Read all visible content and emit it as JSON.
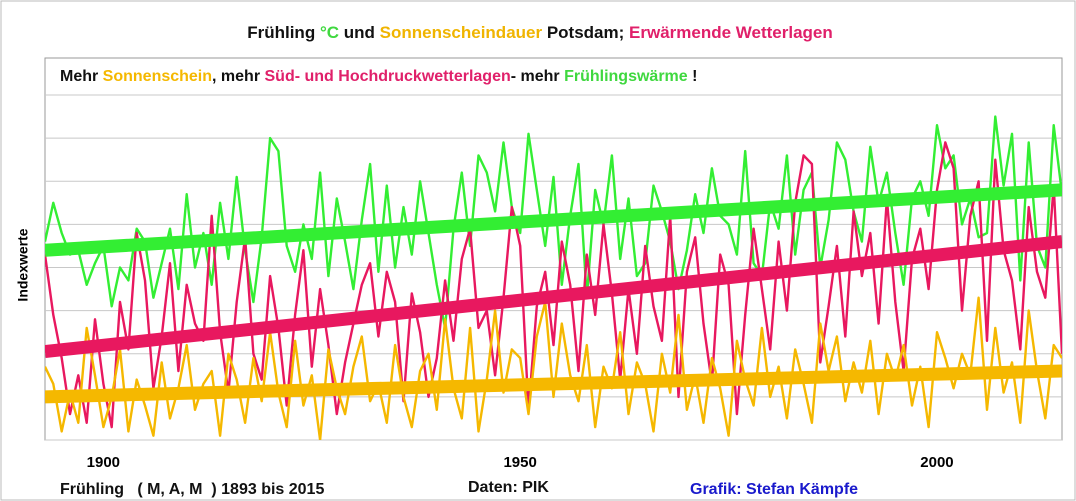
{
  "chart_data": {
    "type": "line",
    "title": [
      {
        "text": "Frühling ",
        "color": "#111111"
      },
      {
        "text": "°C",
        "color": "#3fd83f"
      },
      {
        "text": " und ",
        "color": "#111111"
      },
      {
        "text": "Sonnenscheindauer",
        "color": "#f0b400"
      },
      {
        "text": " Potsdam; ",
        "color": "#111111"
      },
      {
        "text": "Erwärmende Wetterlagen",
        "color": "#e0206a"
      }
    ],
    "subtitle": [
      {
        "text": "Mehr ",
        "color": "#111111"
      },
      {
        "text": "Sonnenschein",
        "color": "#f5b800"
      },
      {
        "text": ", mehr ",
        "color": "#111111"
      },
      {
        "text": "Süd- und Hochdruckwetterlagen",
        "color": "#e0206a"
      },
      {
        "text": "- mehr ",
        "color": "#111111"
      },
      {
        "text": "Frühlingswärme",
        "color": "#3fd83f"
      },
      {
        "text": " !",
        "color": "#111111"
      }
    ],
    "y_label": "Indexwerte",
    "footer": [
      {
        "text": "Frühling   ( M, A, M  ) 1893 bis 2015",
        "color": "#111111"
      },
      {
        "text": "Daten: PIK",
        "color": "#111111"
      },
      {
        "text": "Grafik: Stefan Kämpfe",
        "color": "#1a1acc"
      }
    ],
    "x": [
      1893,
      1894,
      1895,
      1896,
      1897,
      1898,
      1899,
      1900,
      1901,
      1902,
      1903,
      1904,
      1905,
      1906,
      1907,
      1908,
      1909,
      1910,
      1911,
      1912,
      1913,
      1914,
      1915,
      1916,
      1917,
      1918,
      1919,
      1920,
      1921,
      1922,
      1923,
      1924,
      1925,
      1926,
      1927,
      1928,
      1929,
      1930,
      1931,
      1932,
      1933,
      1934,
      1935,
      1936,
      1937,
      1938,
      1939,
      1940,
      1941,
      1942,
      1943,
      1944,
      1945,
      1946,
      1947,
      1948,
      1949,
      1950,
      1951,
      1952,
      1953,
      1954,
      1955,
      1956,
      1957,
      1958,
      1959,
      1960,
      1961,
      1962,
      1963,
      1964,
      1965,
      1966,
      1967,
      1968,
      1969,
      1970,
      1971,
      1972,
      1973,
      1974,
      1975,
      1976,
      1977,
      1978,
      1979,
      1980,
      1981,
      1982,
      1983,
      1984,
      1985,
      1986,
      1987,
      1988,
      1989,
      1990,
      1991,
      1992,
      1993,
      1994,
      1995,
      1996,
      1997,
      1998,
      1999,
      2000,
      2001,
      2002,
      2003,
      2004,
      2005,
      2006,
      2007,
      2008,
      2009,
      2010,
      2011,
      2012,
      2013,
      2014,
      2015
    ],
    "xlim": [
      1893,
      2015
    ],
    "xticks": [
      1900,
      1950,
      2000
    ],
    "ylim": [
      0,
      8
    ],
    "yticks": [
      0,
      1,
      2,
      3,
      4,
      5,
      6,
      7,
      8
    ],
    "grid": true,
    "series": [
      {
        "name": "°C",
        "color": "#33ee33",
        "trend": [
          4.4,
          5.8
        ],
        "values": [
          4.6,
          5.5,
          4.8,
          4.3,
          4.4,
          3.6,
          4.1,
          4.5,
          3.1,
          4.0,
          3.7,
          4.9,
          4.6,
          3.3,
          4.1,
          4.9,
          3.5,
          5.7,
          4.0,
          4.8,
          3.6,
          5.5,
          4.2,
          6.1,
          4.4,
          3.2,
          4.7,
          7.0,
          6.7,
          4.5,
          3.9,
          5.0,
          4.2,
          6.2,
          3.8,
          5.6,
          4.6,
          3.5,
          5.1,
          6.4,
          3.9,
          5.9,
          4.0,
          5.4,
          4.3,
          6.0,
          4.8,
          3.6,
          2.6,
          4.9,
          6.2,
          4.5,
          6.6,
          6.2,
          5.3,
          6.9,
          5.4,
          4.8,
          7.1,
          5.8,
          4.5,
          6.1,
          3.6,
          5.2,
          6.4,
          3.3,
          5.8,
          5.0,
          6.6,
          4.2,
          5.6,
          3.8,
          4.1,
          5.9,
          5.3,
          4.6,
          3.5,
          4.4,
          5.7,
          4.8,
          6.3,
          5.2,
          5.0,
          4.3,
          6.7,
          4.1,
          3.8,
          5.5,
          4.9,
          6.6,
          4.3,
          5.8,
          6.2,
          4.0,
          5.1,
          6.9,
          6.5,
          5.3,
          4.6,
          6.8,
          5.5,
          6.2,
          4.8,
          3.6,
          5.6,
          6.0,
          5.2,
          7.3,
          6.3,
          6.6,
          5.0,
          5.6,
          4.7,
          4.8,
          7.5,
          5.9,
          7.1,
          3.7,
          6.9,
          4.5,
          4.0,
          7.3,
          5.7
        ]
      },
      {
        "name": "Erwärmende Wetterlagen",
        "color": "#e8185f",
        "trend": [
          2.05,
          4.6
        ],
        "values": [
          4.3,
          2.9,
          1.9,
          0.6,
          1.5,
          0.4,
          2.8,
          1.3,
          0.3,
          3.2,
          2.1,
          4.8,
          3.7,
          1.2,
          2.4,
          4.1,
          1.6,
          3.6,
          2.7,
          2.3,
          5.2,
          2.5,
          1.1,
          3.2,
          4.7,
          2.0,
          1.4,
          3.8,
          2.6,
          0.8,
          2.9,
          4.4,
          1.7,
          3.5,
          2.2,
          0.6,
          1.8,
          2.7,
          3.6,
          4.1,
          2.4,
          3.9,
          3.2,
          0.9,
          3.4,
          2.5,
          1.0,
          1.9,
          3.7,
          2.3,
          4.2,
          4.9,
          2.6,
          3.0,
          1.5,
          3.3,
          5.4,
          4.5,
          0.7,
          3.1,
          3.9,
          2.2,
          4.6,
          3.6,
          1.6,
          4.3,
          2.9,
          5.0,
          3.4,
          1.4,
          3.5,
          2.0,
          4.5,
          3.1,
          2.3,
          5.2,
          1.0,
          3.9,
          4.7,
          2.7,
          1.3,
          4.3,
          3.6,
          0.6,
          2.9,
          4.9,
          3.5,
          2.1,
          4.6,
          3.0,
          5.5,
          6.6,
          6.4,
          1.8,
          3.1,
          4.5,
          2.4,
          5.3,
          3.8,
          4.8,
          2.7,
          5.6,
          3.2,
          1.6,
          4.2,
          4.9,
          3.5,
          5.8,
          6.9,
          6.3,
          3.0,
          5.2,
          6.0,
          2.3,
          6.5,
          4.4,
          3.7,
          2.1,
          5.4,
          3.9,
          3.3,
          5.9,
          2.0
        ]
      },
      {
        "name": "Sonnenscheindauer",
        "color": "#f5b800",
        "trend": [
          1.0,
          1.6
        ],
        "values": [
          1.7,
          1.3,
          0.2,
          1.1,
          0.4,
          2.6,
          1.5,
          0.3,
          1.0,
          2.1,
          0.2,
          1.4,
          0.8,
          0.1,
          1.8,
          0.5,
          1.2,
          2.2,
          0.7,
          1.3,
          1.6,
          0.1,
          2.0,
          1.4,
          0.4,
          1.9,
          0.9,
          2.5,
          1.1,
          0.3,
          2.3,
          0.8,
          1.5,
          0.0,
          2.1,
          1.2,
          0.6,
          1.7,
          2.4,
          0.9,
          1.3,
          0.4,
          2.2,
          1.0,
          0.3,
          1.6,
          2.0,
          0.7,
          2.8,
          1.2,
          0.5,
          2.6,
          0.2,
          1.4,
          3.0,
          1.1,
          2.1,
          1.9,
          0.6,
          2.4,
          3.2,
          1.0,
          2.7,
          1.5,
          0.9,
          2.2,
          0.3,
          1.7,
          1.2,
          2.5,
          0.6,
          1.8,
          1.3,
          0.2,
          2.0,
          1.1,
          2.9,
          0.7,
          1.5,
          0.4,
          1.9,
          1.2,
          0.1,
          2.3,
          1.4,
          0.8,
          2.6,
          1.0,
          1.7,
          0.5,
          2.1,
          1.3,
          0.4,
          2.7,
          1.6,
          2.4,
          0.9,
          1.8,
          1.1,
          2.3,
          0.6,
          2.0,
          1.4,
          2.2,
          0.8,
          1.7,
          0.3,
          2.5,
          1.9,
          1.2,
          2.0,
          1.5,
          3.3,
          0.7,
          2.6,
          1.1,
          1.8,
          0.4,
          3.0,
          1.6,
          0.5,
          2.2,
          1.9
        ]
      }
    ]
  }
}
